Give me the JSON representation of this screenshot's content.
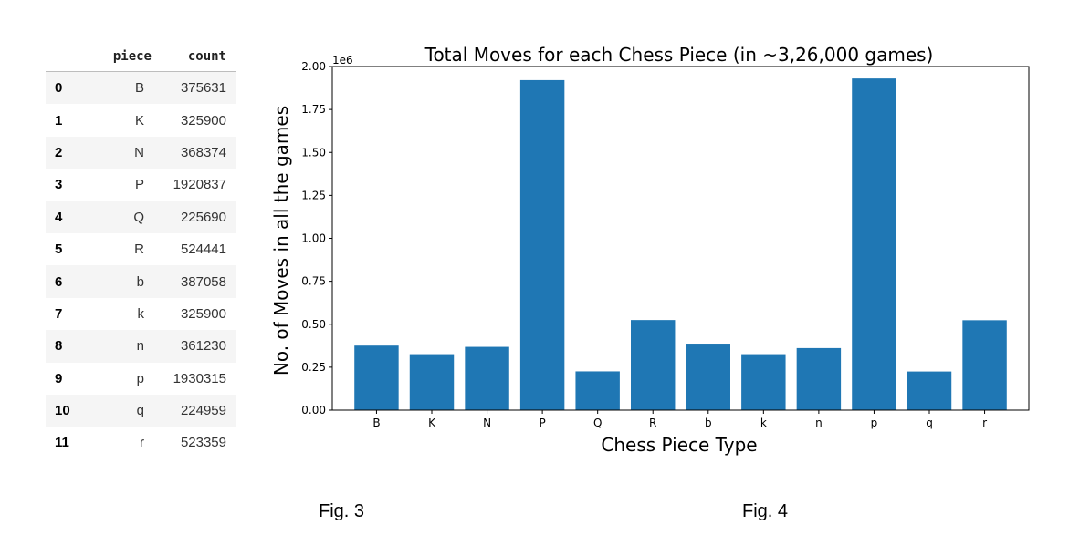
{
  "table": {
    "headers": {
      "index": "",
      "piece": "piece",
      "count": "count"
    },
    "rows": [
      {
        "index": "0",
        "piece": "B",
        "count": "375631"
      },
      {
        "index": "1",
        "piece": "K",
        "count": "325900"
      },
      {
        "index": "2",
        "piece": "N",
        "count": "368374"
      },
      {
        "index": "3",
        "piece": "P",
        "count": "1920837"
      },
      {
        "index": "4",
        "piece": "Q",
        "count": "225690"
      },
      {
        "index": "5",
        "piece": "R",
        "count": "524441"
      },
      {
        "index": "6",
        "piece": "b",
        "count": "387058"
      },
      {
        "index": "7",
        "piece": "k",
        "count": "325900"
      },
      {
        "index": "8",
        "piece": "n",
        "count": "361230"
      },
      {
        "index": "9",
        "piece": "p",
        "count": "1930315"
      },
      {
        "index": "10",
        "piece": "q",
        "count": "224959"
      },
      {
        "index": "11",
        "piece": "r",
        "count": "523359"
      }
    ]
  },
  "captions": {
    "fig3": "Fig. 3",
    "fig4": "Fig. 4"
  },
  "chart_data": {
    "type": "bar",
    "title": "Total Moves for each Chess Piece (in ~3,26,000 games)",
    "xlabel": "Chess Piece Type",
    "ylabel": "No. of Moves in all the games",
    "offset_label": "1e6",
    "categories": [
      "B",
      "K",
      "N",
      "P",
      "Q",
      "R",
      "b",
      "k",
      "n",
      "p",
      "q",
      "r"
    ],
    "values": [
      375631,
      325900,
      368374,
      1920837,
      225690,
      524441,
      387058,
      325900,
      361230,
      1930315,
      224959,
      523359
    ],
    "ylim": [
      0,
      2000000
    ],
    "y_tick_values": [
      0,
      250000,
      500000,
      750000,
      1000000,
      1250000,
      1500000,
      1750000,
      2000000
    ],
    "y_tick_labels": [
      "0.00",
      "0.25",
      "0.50",
      "0.75",
      "1.00",
      "1.25",
      "1.50",
      "1.75",
      "2.00"
    ],
    "bar_color": "#1f77b4",
    "grid": false
  }
}
